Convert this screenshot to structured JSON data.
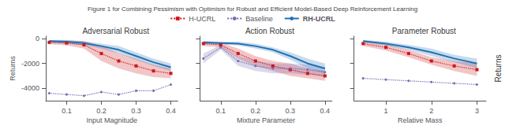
{
  "title": "Figure 1 for Combining Pessimism with Optimism for Robust and Efficient Model-Based Deep Reinforcement Learning",
  "annotations": [
    "Returns"
  ],
  "chart_data": [
    {
      "type": "line",
      "title": "Adversarial Robust",
      "xlabel": "Input Magnitude",
      "ylabel": "Returns",
      "x": [
        0.05,
        0.1,
        0.15,
        0.2,
        0.25,
        0.3,
        0.35,
        0.4
      ],
      "series": [
        {
          "name": "H-UCRL",
          "color": "#cb181d",
          "marker": "square",
          "line_style": "dotted",
          "values": [
            -300,
            -350,
            -500,
            -1200,
            -1800,
            -2200,
            -2600,
            -2800
          ],
          "lower": [
            -450,
            -550,
            -800,
            -1800,
            -2400,
            -2800,
            -3100,
            -3200
          ],
          "upper": [
            -150,
            -150,
            -200,
            -600,
            -1200,
            -1600,
            -2100,
            -2400
          ]
        },
        {
          "name": "Baseline",
          "color": "#756bb1",
          "marker": "point",
          "line_style": "dotted",
          "values": [
            -4400,
            -4500,
            -4600,
            -4300,
            -4500,
            -4200,
            -4200,
            -3700
          ]
        },
        {
          "name": "RH-UCRL",
          "color": "#2171b5",
          "line_style": "solid",
          "values": [
            -200,
            -250,
            -350,
            -600,
            -900,
            -1400,
            -1900,
            -2300
          ],
          "lower": [
            -300,
            -400,
            -500,
            -800,
            -1200,
            -1700,
            -2200,
            -2600
          ],
          "upper": [
            -100,
            -100,
            -200,
            -400,
            -600,
            -1100,
            -1600,
            -2000
          ]
        }
      ],
      "xlim": [
        0.04,
        0.42
      ],
      "xticks": [
        0.1,
        0.2,
        0.3,
        0.4
      ],
      "ylim": [
        -5000,
        200
      ],
      "yticks": [
        0,
        -2000,
        -4000
      ],
      "grid": false,
      "legend": "top"
    },
    {
      "type": "line",
      "title": "Action Robust",
      "xlabel": "Mixture Parameter",
      "x": [
        0.05,
        0.1,
        0.15,
        0.2,
        0.25,
        0.3,
        0.35,
        0.4
      ],
      "series": [
        {
          "name": "H-UCRL",
          "color": "#cb181d",
          "marker": "square",
          "line_style": "dotted",
          "values": [
            -400,
            -500,
            -1200,
            -1800,
            -2200,
            -2500,
            -2800,
            -3000
          ],
          "lower": [
            -600,
            -700,
            -1600,
            -2200,
            -2600,
            -3000,
            -3200,
            -3400
          ],
          "upper": [
            -200,
            -300,
            -800,
            -1400,
            -1800,
            -2000,
            -2400,
            -2600
          ]
        },
        {
          "name": "Baseline",
          "color": "#756bb1",
          "marker": "point",
          "line_style": "dotted",
          "values": [
            -1600,
            -700,
            -1800,
            -2200,
            -2400,
            -2400,
            -2500,
            -2700
          ],
          "lower": [
            -2000,
            -900,
            -2200,
            -2600,
            -2800,
            -2800,
            -2900,
            -3100
          ],
          "upper": [
            -1200,
            -500,
            -1400,
            -1800,
            -2000,
            -2000,
            -2100,
            -2300
          ]
        },
        {
          "name": "RH-UCRL",
          "color": "#2171b5",
          "line_style": "solid",
          "values": [
            -300,
            -350,
            -400,
            -600,
            -900,
            -1400,
            -2000,
            -2400
          ],
          "lower": [
            -400,
            -450,
            -550,
            -800,
            -1100,
            -1700,
            -2400,
            -2800
          ],
          "upper": [
            -200,
            -250,
            -250,
            -400,
            -700,
            -1100,
            -1600,
            -2000
          ]
        }
      ],
      "xlim": [
        0.04,
        0.42
      ],
      "xticks": [
        0.1,
        0.2,
        0.3,
        0.4
      ],
      "ylim": [
        -5000,
        200
      ],
      "yticks": [
        0,
        -2000,
        -4000
      ],
      "grid": false,
      "tick_labels": "x"
    },
    {
      "type": "line",
      "title": "Parameter Robust",
      "xlabel": "Relative Mass",
      "x": [
        0.5,
        1.0,
        1.5,
        2.0,
        2.5,
        3.0
      ],
      "series": [
        {
          "name": "H-UCRL",
          "color": "#cb181d",
          "marker": "square",
          "line_style": "dotted",
          "values": [
            -400,
            -700,
            -1200,
            -1800,
            -2200,
            -2500
          ],
          "lower": [
            -600,
            -950,
            -1500,
            -2100,
            -2600,
            -3000
          ],
          "upper": [
            -200,
            -450,
            -900,
            -1500,
            -1800,
            -2000
          ]
        },
        {
          "name": "Baseline",
          "color": "#756bb1",
          "marker": "point",
          "line_style": "dotted",
          "values": [
            -3200,
            -3300,
            -3400,
            -3500,
            -3600,
            -3700
          ]
        },
        {
          "name": "RH-UCRL",
          "color": "#2171b5",
          "line_style": "solid",
          "values": [
            -200,
            -400,
            -700,
            -1100,
            -1600,
            -2000
          ],
          "lower": [
            -300,
            -550,
            -900,
            -1400,
            -1900,
            -2400
          ],
          "upper": [
            -100,
            -250,
            -500,
            -800,
            -1300,
            -1600
          ]
        }
      ],
      "xlim": [
        0.3,
        3.2
      ],
      "xticks": [
        1,
        2,
        3
      ],
      "ylim": [
        -5000,
        200
      ],
      "yticks": [
        0,
        -2000,
        -4000
      ],
      "grid": false,
      "tick_labels": "x"
    }
  ]
}
